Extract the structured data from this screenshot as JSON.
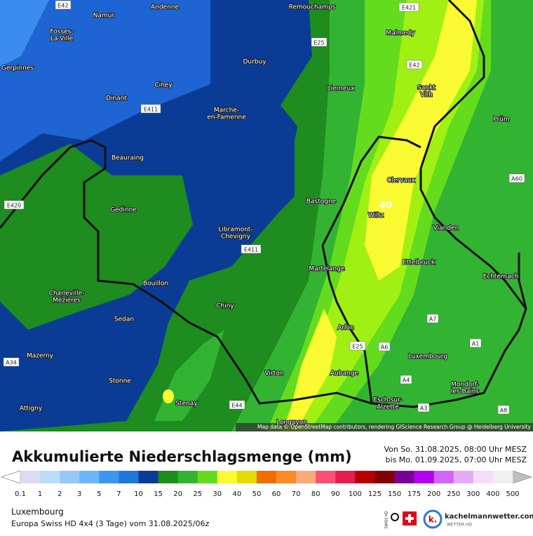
{
  "map": {
    "places": [
      {
        "lines": [
          "Namur"
        ]
      },
      {
        "lines": [
          "Andenne"
        ]
      },
      {
        "lines": [
          "Remouchamps"
        ]
      },
      {
        "lines": [
          "Malmedy"
        ]
      },
      {
        "lines": [
          "Fosses-",
          "La-Ville"
        ]
      },
      {
        "lines": [
          "Gerpinnes"
        ]
      },
      {
        "lines": [
          "Durbuy"
        ]
      },
      {
        "lines": [
          "Ciney"
        ]
      },
      {
        "lines": [
          "Dinant"
        ]
      },
      {
        "lines": [
          "Lierneux"
        ]
      },
      {
        "lines": [
          "Sankt",
          "Vith"
        ]
      },
      {
        "lines": [
          "Marche-",
          "en-Famenne"
        ]
      },
      {
        "lines": [
          "Prüm"
        ]
      },
      {
        "lines": [
          "Beauraing"
        ]
      },
      {
        "lines": [
          "Clervaux"
        ]
      },
      {
        "lines": [
          "Bastogne"
        ]
      },
      {
        "lines": [
          "Wiltz"
        ]
      },
      {
        "lines": [
          "Gedinne"
        ]
      },
      {
        "lines": [
          "Vianden"
        ]
      },
      {
        "lines": [
          "Libramont-",
          "Chevigny"
        ]
      },
      {
        "lines": [
          "Ettelbruck"
        ]
      },
      {
        "lines": [
          "Martelange"
        ]
      },
      {
        "lines": [
          "Echternach"
        ]
      },
      {
        "lines": [
          "Bouillon"
        ]
      },
      {
        "lines": [
          "Charleville-",
          "Mézières"
        ]
      },
      {
        "lines": [
          "Chiny"
        ]
      },
      {
        "lines": [
          "Sedan"
        ]
      },
      {
        "lines": [
          "Arlon"
        ]
      },
      {
        "lines": [
          "Mazerny"
        ]
      },
      {
        "lines": [
          "Luxembourg"
        ]
      },
      {
        "lines": [
          "Virton"
        ]
      },
      {
        "lines": [
          "Aubange"
        ]
      },
      {
        "lines": [
          "Stonne"
        ]
      },
      {
        "lines": [
          "Mondorf-",
          "les-Bains"
        ]
      },
      {
        "lines": [
          "Stenay"
        ]
      },
      {
        "lines": [
          "Esch-sur-",
          "Alzette"
        ]
      },
      {
        "lines": [
          "Attigny"
        ]
      },
      {
        "lines": [
          "Longuyon"
        ]
      }
    ],
    "roads": [
      "E42",
      "E421",
      "E25",
      "E42",
      "E411",
      "A60",
      "E420",
      "E411",
      "A7",
      "E25",
      "A6",
      "A1",
      "A34",
      "A4",
      "A3",
      "E44",
      "A8"
    ],
    "value_label": "40",
    "attribution": "Map data © OpenStreetMap contributors, rendering GIScience Research Group @ Heidelberg University"
  },
  "legend": {
    "title": "Akkumulierte Niederschlagsmenge (mm)",
    "period_from": "Von So. 31.08.2025, 08:00 Uhr MESZ",
    "period_to": "bis Mo. 01.09.2025, 07:00 Uhr MESZ",
    "ticks": [
      0.1,
      1,
      2,
      3,
      5,
      7,
      10,
      15,
      20,
      25,
      30,
      40,
      50,
      60,
      70,
      80,
      90,
      100,
      125,
      150,
      175,
      200,
      250,
      300,
      400,
      500
    ],
    "colors": [
      "#dcdcf0",
      "#bcdcfa",
      "#96c8fa",
      "#6eb4fa",
      "#3c96f0",
      "#1e78dc",
      "#0a3c96",
      "#1e8c1e",
      "#32b432",
      "#64dc1e",
      "#fafa32",
      "#e6dc00",
      "#f06e00",
      "#fa8c28",
      "#faaa78",
      "#fa5078",
      "#e61e50",
      "#b40000",
      "#820000",
      "#780096",
      "#b400f0",
      "#d264fa",
      "#e6aaf5",
      "#f5dcfa",
      "#f0f0f0"
    ],
    "below_color": "#ffffff",
    "above_color": "#bebebe"
  },
  "footer": {
    "region": "Luxembourg",
    "model": "Europa Swiss HD 4x4 (3 Tage) vom 31.08.2025/06z",
    "brand": "kachelmannwetter.com",
    "brand_sub": "WETTER HD",
    "swiss": "SWISS HD"
  }
}
